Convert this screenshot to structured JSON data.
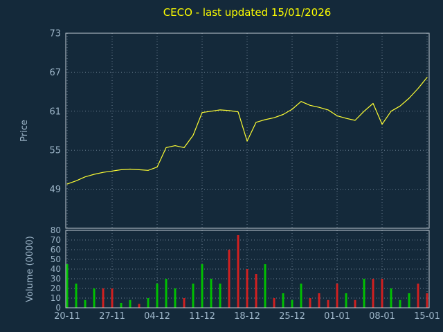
{
  "title": "CECO - last updated 15/01/2026",
  "colors": {
    "background": "#14293a",
    "title": "#ffff00",
    "axis_label": "#9db5c8",
    "grid": "#6b8092",
    "frame": "#c2ccd4",
    "price_line": "#ffff33",
    "volume_up": "#00c000",
    "volume_down": "#d02020"
  },
  "chart_data": [
    {
      "type": "line",
      "name": "price",
      "title": "CECO - last updated 15/01/2026",
      "xlabel": "",
      "ylabel": "Price",
      "yticks": [
        73,
        67,
        61,
        55,
        49
      ],
      "ylim": [
        43,
        73
      ],
      "grid": true,
      "legend": "none",
      "dates": [
        "20-11",
        "21-11",
        "24-11",
        "25-11",
        "26-11",
        "27-11",
        "28-11",
        "01-12",
        "02-12",
        "03-12",
        "04-12",
        "05-12",
        "08-12",
        "09-12",
        "10-12",
        "11-12",
        "12-12",
        "15-12",
        "16-12",
        "17-12",
        "18-12",
        "19-12",
        "22-12",
        "23-12",
        "24-12",
        "25-12",
        "26-12",
        "29-12",
        "30-12",
        "31-12",
        "01-01",
        "02-01",
        "05-01",
        "06-01",
        "07-01",
        "08-01",
        "09-01",
        "12-01",
        "13-01",
        "14-01",
        "15-01"
      ],
      "values": [
        49.8,
        50.3,
        50.9,
        51.3,
        51.6,
        51.8,
        52.0,
        52.1,
        52.0,
        51.9,
        52.4,
        55.4,
        55.7,
        55.4,
        57.3,
        60.8,
        61.0,
        61.2,
        61.1,
        60.9,
        56.4,
        59.3,
        59.7,
        60.0,
        60.5,
        61.3,
        62.5,
        61.9,
        61.6,
        61.2,
        60.3,
        59.9,
        59.6,
        61.0,
        62.2,
        59.0,
        61.0,
        61.8,
        63.0,
        64.5,
        66.2
      ]
    },
    {
      "type": "bar",
      "name": "volume",
      "xlabel": "",
      "ylabel": "Volume (0000)",
      "yticks": [
        80,
        70,
        60,
        50,
        40,
        30,
        20,
        10,
        0
      ],
      "ylim": [
        0,
        80
      ],
      "grid": true,
      "legend": "none",
      "xticklabels": [
        "20-11",
        "27-11",
        "04-12",
        "11-12",
        "18-12",
        "25-12",
        "01-01",
        "08-01",
        "15-01"
      ],
      "xtick_indices": [
        0,
        5,
        10,
        15,
        20,
        25,
        30,
        35,
        40
      ],
      "values": [
        45,
        25,
        8,
        20,
        20,
        20,
        5,
        8,
        4,
        10,
        25,
        30,
        20,
        10,
        25,
        45,
        30,
        25,
        60,
        75,
        40,
        35,
        45,
        10,
        15,
        8,
        25,
        10,
        15,
        8,
        25,
        15,
        8,
        30,
        30,
        30,
        20,
        8,
        15,
        25,
        15
      ],
      "directions": [
        "up",
        "up",
        "up",
        "up",
        "down",
        "down",
        "up",
        "up",
        "down",
        "up",
        "up",
        "up",
        "up",
        "down",
        "up",
        "up",
        "up",
        "up",
        "down",
        "down",
        "down",
        "down",
        "up",
        "down",
        "up",
        "up",
        "up",
        "down",
        "down",
        "down",
        "down",
        "up",
        "down",
        "up",
        "down",
        "down",
        "up",
        "up",
        "up",
        "down",
        "down"
      ]
    }
  ]
}
